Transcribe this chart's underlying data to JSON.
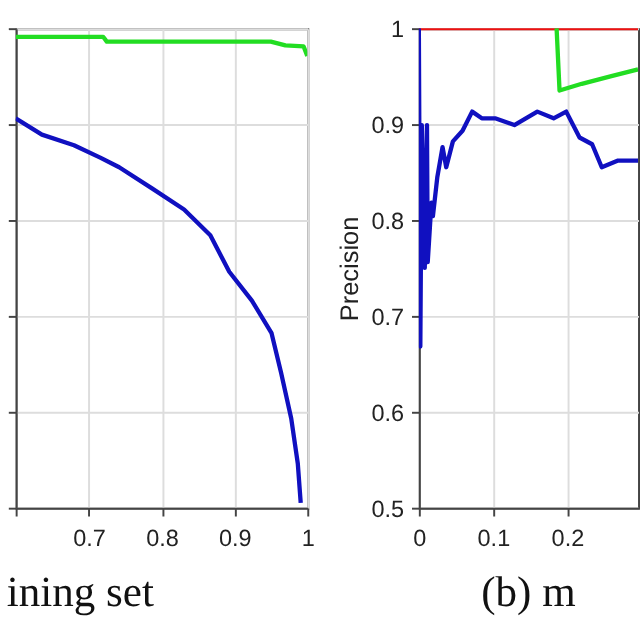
{
  "chart_data": [
    {
      "type": "line",
      "annotations": [
        "ining set"
      ],
      "xlim": [
        0.6,
        1
      ],
      "xticks": [
        {
          "value": 0.6,
          "label": null
        },
        0.7,
        0.8,
        0.9,
        1
      ],
      "ylim": [
        0.5,
        1
      ],
      "yticks": [
        0.5,
        0.6,
        0.7,
        0.8,
        0.9,
        1
      ],
      "tick_labels": "x",
      "grid": true,
      "series": [
        {
          "color": "#22dd22",
          "x": [
            0.6,
            0.72,
            0.725,
            0.95,
            0.97,
            0.995,
            1
          ],
          "values": [
            0.991,
            0.991,
            0.986,
            0.986,
            0.982,
            0.981,
            0.971
          ]
        },
        {
          "color": "#1010c0",
          "x": [
            0.6,
            0.636,
            0.68,
            0.716,
            0.742,
            0.787,
            0.831,
            0.867,
            0.893,
            0.924,
            0.951,
            0.964,
            0.978,
            0.987,
            0.991
          ],
          "values": [
            0.906,
            0.889,
            0.878,
            0.865,
            0.855,
            0.833,
            0.811,
            0.784,
            0.746,
            0.716,
            0.682,
            0.641,
            0.593,
            0.546,
            0.505
          ]
        }
      ]
    },
    {
      "type": "line",
      "ylabel": "Precision",
      "annotations": [
        "(b) m"
      ],
      "xlim": [
        0,
        0.296
      ],
      "xticks": [
        0,
        0.1,
        0.2
      ],
      "ylim": [
        0.5,
        1
      ],
      "yticks": [
        0.5,
        0.6,
        0.7,
        0.8,
        0.9,
        1
      ],
      "grid": true,
      "series": [
        {
          "color": "#ee1111",
          "x": [
            0,
            0.296
          ],
          "values": [
            1,
            1
          ]
        },
        {
          "color": "#22dd22",
          "x": [
            0.186,
            0.19,
            0.22,
            0.26,
            0.296
          ],
          "values": [
            1,
            0.935,
            0.942,
            0.95,
            0.957
          ]
        },
        {
          "color": "#1010c0",
          "x": [
            0,
            0.002,
            0.004,
            0.008,
            0.011,
            0.012,
            0.017,
            0.019,
            0.025,
            0.032,
            0.037,
            0.046,
            0.059,
            0.072,
            0.085,
            0.103,
            0.129,
            0.16,
            0.182,
            0.199,
            0.217,
            0.234,
            0.247,
            0.269,
            0.296
          ],
          "values": [
            1,
            0.668,
            0.899,
            0.75,
            0.899,
            0.756,
            0.818,
            0.804,
            0.845,
            0.876,
            0.855,
            0.882,
            0.893,
            0.913,
            0.906,
            0.906,
            0.899,
            0.913,
            0.906,
            0.913,
            0.886,
            0.879,
            0.855,
            0.862,
            0.862
          ]
        }
      ]
    }
  ]
}
